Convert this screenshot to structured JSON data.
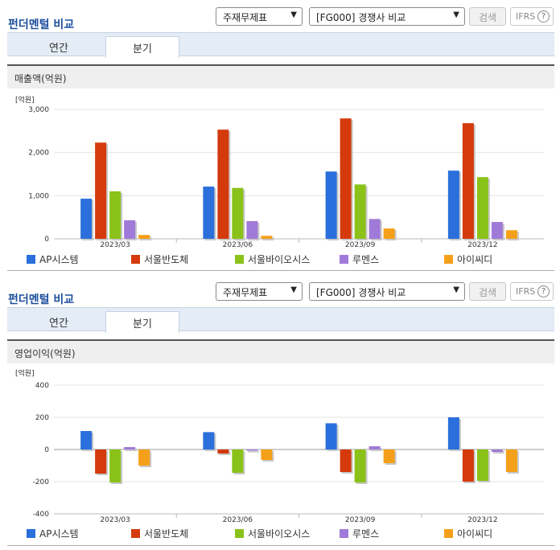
{
  "colors": {
    "title": "#1d4f9c",
    "series": [
      "#2a6fdc",
      "#d43a0c",
      "#8ac21a",
      "#a07ad8",
      "#f5a01a"
    ]
  },
  "panels": [
    {
      "title": "펀더멘털 비교",
      "select1": "주재무제표",
      "select2": "[FG000] 경쟁사 비교",
      "search_label": "검색",
      "ifrs_label": "IFRS",
      "ifrs_help": "?",
      "tabs": [
        "연간",
        "분기"
      ],
      "active_tab": "분기",
      "section_title": "매출액(억원)",
      "chart_data": {
        "type": "bar",
        "unit_label": "[억원]",
        "categories": [
          "2023/03",
          "2023/06",
          "2023/09",
          "2023/12"
        ],
        "ylim": [
          0,
          3000
        ],
        "yticks": [
          "0",
          "1,000",
          "2,000",
          "3,000"
        ],
        "ytick_values": [
          0,
          1000,
          2000,
          3000
        ],
        "grid": true,
        "legend": "bottom",
        "series": [
          {
            "name": "AP시스템",
            "values": [
              930,
              1210,
              1560,
              1580
            ]
          },
          {
            "name": "서울반도체",
            "values": [
              2230,
              2530,
              2790,
              2680
            ]
          },
          {
            "name": "서울바이오시스",
            "values": [
              1100,
              1180,
              1260,
              1430
            ]
          },
          {
            "name": "루멘스",
            "values": [
              430,
              410,
              460,
              390
            ]
          },
          {
            "name": "아이씨디",
            "values": [
              90,
              70,
              240,
              200
            ]
          }
        ]
      }
    },
    {
      "title": "펀더멘털 비교",
      "select1": "주재무제표",
      "select2": "[FG000] 경쟁사 비교",
      "search_label": "검색",
      "ifrs_label": "IFRS",
      "ifrs_help": "?",
      "tabs": [
        "연간",
        "분기"
      ],
      "active_tab": "분기",
      "section_title": "영업이익(억원)",
      "chart_data": {
        "type": "bar",
        "unit_label": "[억원]",
        "categories": [
          "2023/03",
          "2023/06",
          "2023/09",
          "2023/12"
        ],
        "ylim": [
          -400,
          400
        ],
        "yticks": [
          "-400",
          "-200",
          "0",
          "200",
          "400"
        ],
        "ytick_values": [
          -400,
          -200,
          0,
          200,
          400
        ],
        "grid": true,
        "legend": "bottom",
        "series": [
          {
            "name": "AP시스템",
            "values": [
              115,
              108,
              163,
              200
            ]
          },
          {
            "name": "서울반도체",
            "values": [
              -150,
              -25,
              -140,
              -200
            ]
          },
          {
            "name": "서울바이오시스",
            "values": [
              -205,
              -145,
              -205,
              -195
            ]
          },
          {
            "name": "루멘스",
            "values": [
              15,
              -8,
              20,
              -15
            ]
          },
          {
            "name": "아이씨디",
            "values": [
              -100,
              -65,
              -85,
              -140
            ]
          }
        ]
      }
    }
  ]
}
